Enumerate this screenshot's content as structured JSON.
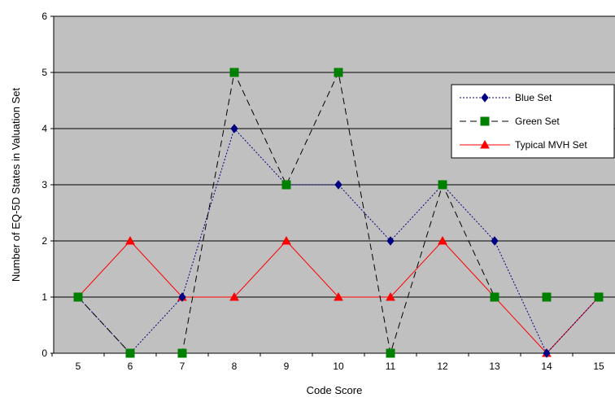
{
  "chart_data": {
    "type": "line",
    "xlabel": "Code Score",
    "ylabel": "Number of EQ-5D States in Valuation Set",
    "x": [
      5,
      6,
      7,
      8,
      9,
      10,
      11,
      12,
      13,
      14,
      15
    ],
    "xlim": [
      5,
      15
    ],
    "ylim": [
      0,
      6
    ],
    "yticks": [
      0,
      1,
      2,
      3,
      4,
      5,
      6
    ],
    "grid": "horizontal",
    "legend_position": "right",
    "plot_background": "#c0c0c0",
    "series": [
      {
        "name": "Blue Set",
        "color": "#000080",
        "line_style": "dotted",
        "marker": "diamond",
        "values": [
          1,
          0,
          1,
          4,
          3,
          3,
          2,
          3,
          2,
          0,
          1
        ]
      },
      {
        "name": "Green Set",
        "color": "#008000",
        "line_color": "#000000",
        "line_style": "dashed",
        "marker": "square",
        "values": [
          1,
          0,
          0,
          5,
          3,
          5,
          0,
          3,
          1,
          1,
          1
        ]
      },
      {
        "name": "Typical MVH Set",
        "color": "#ff0000",
        "line_style": "solid",
        "marker": "triangle",
        "values": [
          1,
          2,
          1,
          1,
          2,
          1,
          1,
          2,
          1,
          0,
          1
        ]
      }
    ]
  }
}
